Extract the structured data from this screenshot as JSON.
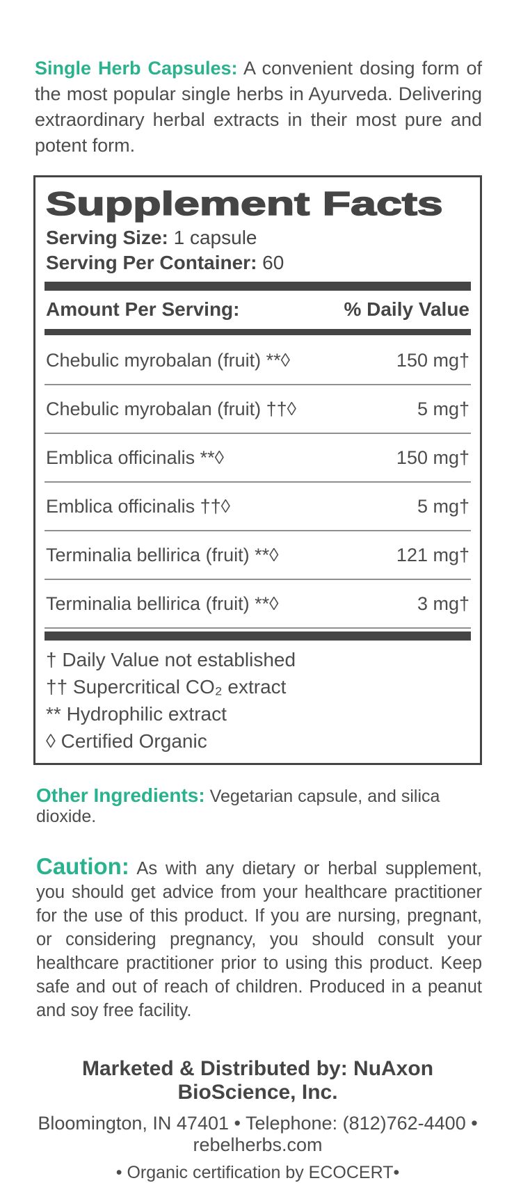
{
  "colors": {
    "accent": "#2ab28f",
    "ink": "#4c4c4c",
    "ink-dark": "#454545"
  },
  "intro": {
    "heading": "Single Herb Capsules:",
    "body": " A convenient dosing form of the most popular single herbs in Ayurveda. Delivering extraordinary herbal extracts in their most pure and potent form."
  },
  "supplement_facts": {
    "title": "Supplement Facts",
    "serving_size_label": "Serving Size:",
    "serving_size_value": " 1 capsule",
    "servings_per_container_label": "Serving Per Container:",
    "servings_per_container_value": " 60",
    "amount_header": "Amount Per Serving:",
    "daily_value_header": "% Daily Value",
    "rows": [
      {
        "name": "Chebulic myrobalan (fruit) **◊",
        "amount": "150 mg†"
      },
      {
        "name": "Chebulic myrobalan (fruit) ††◊",
        "amount": "5 mg†"
      },
      {
        "name": "Emblica officinalis **◊",
        "amount": "150 mg†"
      },
      {
        "name": "Emblica officinalis ††◊",
        "amount": "5 mg†"
      },
      {
        "name": "Terminalia bellirica (fruit) **◊",
        "amount": "121 mg†"
      },
      {
        "name": "Terminalia bellirica (fruit) **◊",
        "amount": "3 mg†"
      }
    ],
    "footnotes": [
      "† Daily Value not established",
      "†† Supercritical CO₂ extract",
      "** Hydrophilic extract",
      "◊ Certified Organic"
    ]
  },
  "other_ingredients": {
    "heading": "Other Ingredients:",
    "body": " Vegetarian capsule, and silica dioxide."
  },
  "caution": {
    "heading": "Caution:",
    "body": " As with any dietary or herbal supplement, you should get advice from your healthcare practitioner for the use of this product. If you are nursing, pregnant, or considering pregnancy, you should consult your healthcare practitioner prior to using this product. Keep safe and out of reach of children. Produced in a peanut and soy free facility."
  },
  "footer": {
    "marketed_by": "Marketed & Distributed by: NuAxon BioScience, Inc.",
    "address_line": "Bloomington, IN 47401 • Telephone: (812)762-4400 • rebelherbs.com",
    "certification_line": "• Organic certification by ECOCERT•"
  }
}
